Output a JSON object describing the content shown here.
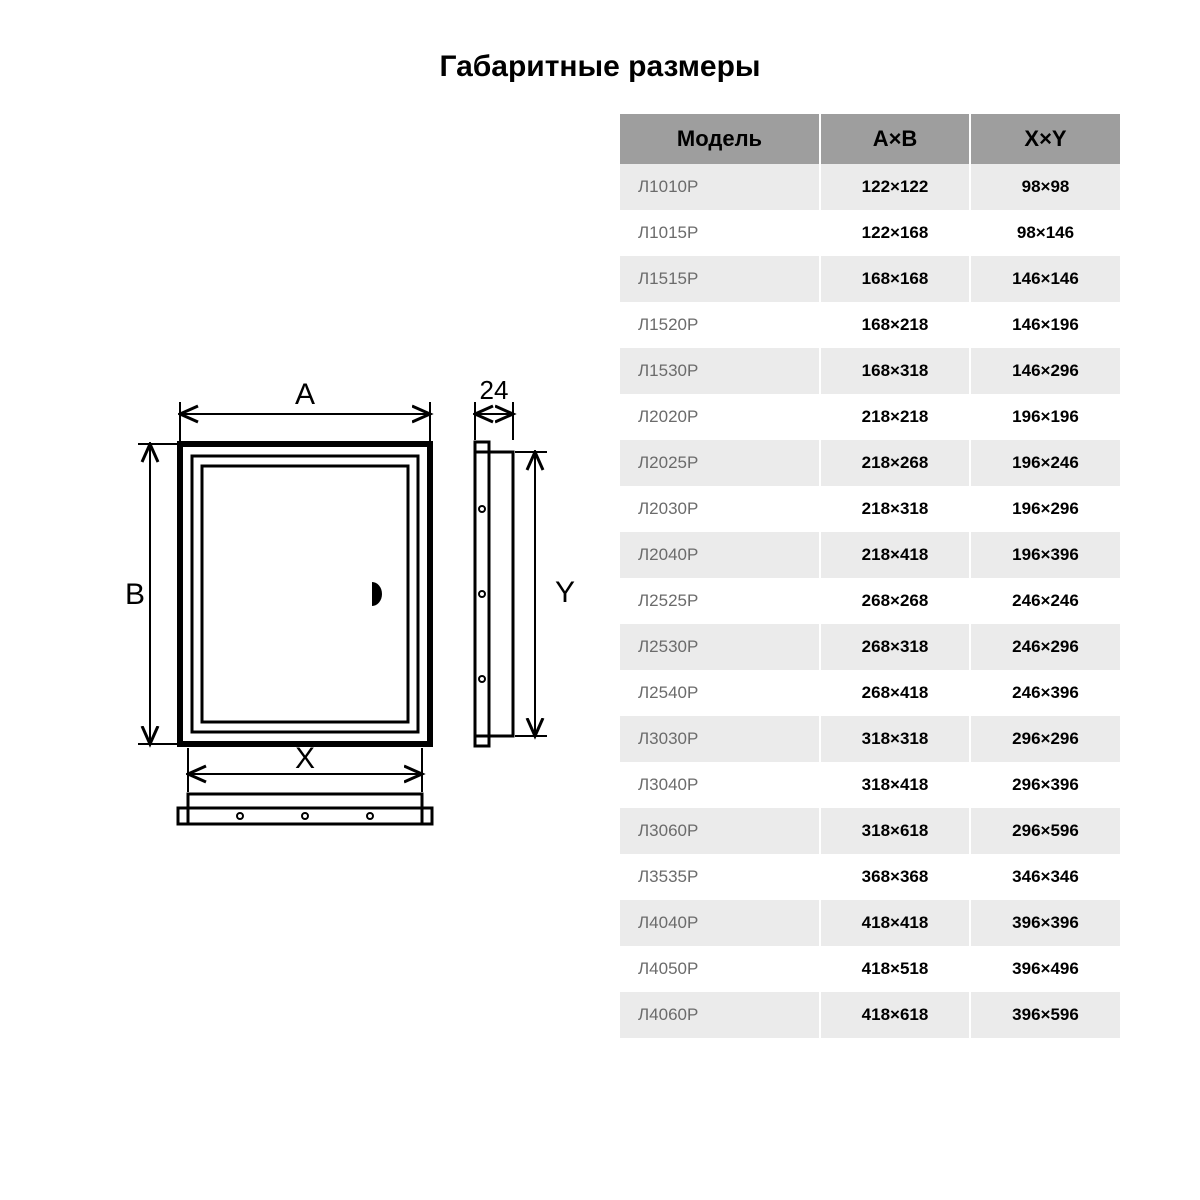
{
  "title": "Габаритные размеры",
  "diagram": {
    "labels": {
      "A": "A",
      "B": "B",
      "X": "X",
      "Y": "Y",
      "depth": "24"
    },
    "stroke": "#000000",
    "stroke_width": 3,
    "font_size": 26
  },
  "table": {
    "columns": [
      "Модель",
      "A×B",
      "X×Y"
    ],
    "header_bg": "#9e9e9e",
    "row_odd_bg": "#ebebeb",
    "row_even_bg": "#ffffff",
    "model_color": "#6b6b6b",
    "value_color": "#000000",
    "rows": [
      {
        "model": "Л1010Р",
        "ab": "122×122",
        "xy": "98×98"
      },
      {
        "model": "Л1015Р",
        "ab": "122×168",
        "xy": "98×146"
      },
      {
        "model": "Л1515Р",
        "ab": "168×168",
        "xy": "146×146"
      },
      {
        "model": "Л1520Р",
        "ab": "168×218",
        "xy": "146×196"
      },
      {
        "model": "Л1530Р",
        "ab": "168×318",
        "xy": "146×296"
      },
      {
        "model": "Л2020Р",
        "ab": "218×218",
        "xy": "196×196"
      },
      {
        "model": "Л2025Р",
        "ab": "218×268",
        "xy": "196×246"
      },
      {
        "model": "Л2030Р",
        "ab": "218×318",
        "xy": "196×296"
      },
      {
        "model": "Л2040Р",
        "ab": "218×418",
        "xy": "196×396"
      },
      {
        "model": "Л2525Р",
        "ab": "268×268",
        "xy": "246×246"
      },
      {
        "model": "Л2530Р",
        "ab": "268×318",
        "xy": "246×296"
      },
      {
        "model": "Л2540Р",
        "ab": "268×418",
        "xy": "246×396"
      },
      {
        "model": "Л3030Р",
        "ab": "318×318",
        "xy": "296×296"
      },
      {
        "model": "Л3040Р",
        "ab": "318×418",
        "xy": "296×396"
      },
      {
        "model": "Л3060Р",
        "ab": "318×618",
        "xy": "296×596"
      },
      {
        "model": "Л3535Р",
        "ab": "368×368",
        "xy": "346×346"
      },
      {
        "model": "Л4040Р",
        "ab": "418×418",
        "xy": "396×396"
      },
      {
        "model": "Л4050Р",
        "ab": "418×518",
        "xy": "396×496"
      },
      {
        "model": "Л4060Р",
        "ab": "418×618",
        "xy": "396×596"
      }
    ]
  }
}
